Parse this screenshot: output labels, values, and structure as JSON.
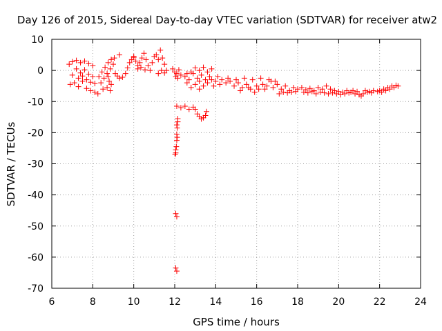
{
  "chart_data": {
    "type": "scatter",
    "title": "Day 126 of 2015, Sidereal Day-to-day VTEC variation (SDTVAR) for receiver atw2",
    "xlabel": "GPS time / hours",
    "ylabel": "SDTVAR / TECUs",
    "xlim": [
      6,
      24
    ],
    "ylim": [
      -70,
      10
    ],
    "xticks": [
      "6",
      "8",
      "10",
      "12",
      "14",
      "16",
      "18",
      "20",
      "22",
      "24"
    ],
    "yticks": [
      "10",
      "0",
      "-10",
      "-20",
      "-30",
      "-40",
      "-50",
      "-60",
      "-70"
    ],
    "grid": true,
    "marker": "plus",
    "color": "#ff0000",
    "series": [
      {
        "name": "SDTVAR",
        "points": [
          [
            6.85,
            2.0
          ],
          [
            7.0,
            2.8
          ],
          [
            7.2,
            3.2
          ],
          [
            7.4,
            2.5
          ],
          [
            7.6,
            3.0
          ],
          [
            7.8,
            2.2
          ],
          [
            8.0,
            1.5
          ],
          [
            7.0,
            -1.5
          ],
          [
            7.2,
            0.5
          ],
          [
            7.4,
            -0.8
          ],
          [
            7.6,
            0.2
          ],
          [
            7.8,
            -1.2
          ],
          [
            8.0,
            -2.0
          ],
          [
            6.9,
            -4.5
          ],
          [
            7.1,
            -4.0
          ],
          [
            7.3,
            -5.2
          ],
          [
            7.5,
            -3.5
          ],
          [
            7.7,
            -5.8
          ],
          [
            7.9,
            -6.5
          ],
          [
            8.1,
            -7.0
          ],
          [
            8.25,
            -7.5
          ],
          [
            7.3,
            -2.5
          ],
          [
            7.5,
            -1.8
          ],
          [
            7.7,
            -3.0
          ],
          [
            7.9,
            -3.8
          ],
          [
            8.1,
            -4.2
          ],
          [
            8.3,
            -2.0
          ],
          [
            8.45,
            -0.5
          ],
          [
            8.6,
            1.0
          ],
          [
            8.75,
            2.5
          ],
          [
            8.9,
            3.5
          ],
          [
            9.05,
            4.0
          ],
          [
            8.4,
            -4.0
          ],
          [
            8.55,
            -2.5
          ],
          [
            8.7,
            -1.0
          ],
          [
            8.85,
            0.5
          ],
          [
            9.0,
            2.0
          ],
          [
            8.7,
            -5.5
          ],
          [
            8.85,
            -6.5
          ],
          [
            8.9,
            -4.5
          ],
          [
            8.75,
            -2.0
          ],
          [
            8.5,
            -6.0
          ],
          [
            8.8,
            -3.5
          ],
          [
            9.1,
            -1.0
          ],
          [
            9.2,
            -1.8
          ],
          [
            9.3,
            -2.5
          ],
          [
            9.45,
            -2.2
          ],
          [
            9.6,
            -1.0
          ],
          [
            9.7,
            0.8
          ],
          [
            9.8,
            2.5
          ],
          [
            9.9,
            3.5
          ],
          [
            10.0,
            4.2
          ],
          [
            10.1,
            3.0
          ],
          [
            10.2,
            1.5
          ],
          [
            10.3,
            2.5
          ],
          [
            10.4,
            4.0
          ],
          [
            10.5,
            5.5
          ],
          [
            10.6,
            3.5
          ],
          [
            10.7,
            1.5
          ],
          [
            10.8,
            0.0
          ],
          [
            10.9,
            2.5
          ],
          [
            11.0,
            4.5
          ],
          [
            11.1,
            5.0
          ],
          [
            11.2,
            3.5
          ],
          [
            11.3,
            6.5
          ],
          [
            11.4,
            4.0
          ],
          [
            11.5,
            2.0
          ],
          [
            11.6,
            0.0
          ],
          [
            9.3,
            5.0
          ],
          [
            10.0,
            4.5
          ],
          [
            10.2,
            0.5
          ],
          [
            10.35,
            1.0
          ],
          [
            10.55,
            0.2
          ],
          [
            11.2,
            -1.0
          ],
          [
            11.35,
            0.0
          ],
          [
            11.5,
            -0.8
          ],
          [
            11.9,
            0.5
          ],
          [
            12.0,
            -0.5
          ],
          [
            12.1,
            -1.0
          ],
          [
            12.2,
            0.2
          ],
          [
            12.05,
            -2.0
          ],
          [
            12.15,
            -2.5
          ],
          [
            12.3,
            -1.5
          ],
          [
            12.1,
            -11.5
          ],
          [
            12.3,
            -12.0
          ],
          [
            12.5,
            -11.5
          ],
          [
            12.7,
            -12.5
          ],
          [
            12.9,
            -11.8
          ],
          [
            13.0,
            -12.5
          ],
          [
            13.1,
            -14.0
          ],
          [
            13.2,
            -14.8
          ],
          [
            13.3,
            -15.6
          ],
          [
            13.4,
            -15.2
          ],
          [
            13.5,
            -14.5
          ],
          [
            13.55,
            -13.2
          ],
          [
            12.15,
            -15.5
          ],
          [
            12.15,
            -16.5
          ],
          [
            12.12,
            -18.5
          ],
          [
            12.1,
            -20.5
          ],
          [
            12.1,
            -22.5
          ],
          [
            12.08,
            -24.5
          ],
          [
            12.05,
            -25.5
          ],
          [
            12.05,
            -26.5
          ],
          [
            12.02,
            -27.0
          ],
          [
            12.1,
            -17.5
          ],
          [
            12.12,
            -21.5
          ],
          [
            12.05,
            -46.0
          ],
          [
            12.1,
            -47.0
          ],
          [
            12.05,
            -63.5
          ],
          [
            12.1,
            -64.5
          ],
          [
            12.5,
            -2.0
          ],
          [
            12.7,
            -3.0
          ],
          [
            12.9,
            -1.0
          ],
          [
            13.1,
            -2.5
          ],
          [
            13.3,
            -1.5
          ],
          [
            13.5,
            -3.0
          ],
          [
            13.7,
            -2.0
          ],
          [
            12.6,
            -4.0
          ],
          [
            12.8,
            -5.5
          ],
          [
            13.0,
            -4.5
          ],
          [
            13.2,
            -6.0
          ],
          [
            13.4,
            -5.0
          ],
          [
            13.6,
            -4.0
          ],
          [
            13.8,
            -3.0
          ],
          [
            12.8,
            -0.5
          ],
          [
            13.0,
            0.8
          ],
          [
            13.2,
            0.0
          ],
          [
            13.4,
            1.0
          ],
          [
            13.6,
            -0.5
          ],
          [
            13.8,
            0.5
          ],
          [
            12.6,
            -1.0
          ],
          [
            13.2,
            -3.5
          ],
          [
            13.9,
            -5.0
          ],
          [
            14.0,
            -3.5
          ],
          [
            14.1,
            -2.0
          ],
          [
            14.2,
            -4.5
          ],
          [
            14.3,
            -3.0
          ],
          [
            14.5,
            -4.0
          ],
          [
            14.7,
            -3.5
          ],
          [
            14.9,
            -5.0
          ],
          [
            15.1,
            -4.0
          ],
          [
            15.3,
            -5.5
          ],
          [
            15.5,
            -4.5
          ],
          [
            15.7,
            -6.0
          ],
          [
            15.9,
            -7.0
          ],
          [
            16.1,
            -6.0
          ],
          [
            16.3,
            -4.5
          ],
          [
            16.5,
            -5.0
          ],
          [
            16.7,
            -3.5
          ],
          [
            14.6,
            -2.5
          ],
          [
            15.0,
            -3.0
          ],
          [
            15.4,
            -2.5
          ],
          [
            15.8,
            -3.0
          ],
          [
            16.2,
            -2.5
          ],
          [
            16.6,
            -3.0
          ],
          [
            16.9,
            -3.5
          ],
          [
            15.2,
            -6.5
          ],
          [
            15.6,
            -5.5
          ],
          [
            16.0,
            -5.0
          ],
          [
            16.4,
            -6.0
          ],
          [
            16.8,
            -5.5
          ],
          [
            17.0,
            -4.5
          ],
          [
            17.2,
            -6.0
          ],
          [
            17.4,
            -5.0
          ],
          [
            17.6,
            -6.5
          ],
          [
            17.8,
            -5.5
          ],
          [
            18.0,
            -6.0
          ],
          [
            17.1,
            -7.5
          ],
          [
            17.3,
            -7.0
          ],
          [
            17.5,
            -7.2
          ],
          [
            17.7,
            -7.0
          ],
          [
            17.9,
            -6.8
          ],
          [
            18.2,
            -5.5
          ],
          [
            18.4,
            -6.2
          ],
          [
            18.6,
            -5.8
          ],
          [
            18.8,
            -6.5
          ],
          [
            19.0,
            -5.5
          ],
          [
            19.2,
            -6.0
          ],
          [
            18.3,
            -7.0
          ],
          [
            18.5,
            -7.2
          ],
          [
            18.7,
            -6.8
          ],
          [
            18.9,
            -7.5
          ],
          [
            19.1,
            -7.0
          ],
          [
            19.3,
            -7.2
          ],
          [
            19.4,
            -5.0
          ],
          [
            19.6,
            -6.0
          ],
          [
            19.8,
            -6.5
          ],
          [
            20.0,
            -6.8
          ],
          [
            20.2,
            -7.0
          ],
          [
            20.4,
            -6.5
          ],
          [
            19.5,
            -7.5
          ],
          [
            19.7,
            -7.2
          ],
          [
            19.9,
            -7.5
          ],
          [
            20.1,
            -7.8
          ],
          [
            20.3,
            -7.5
          ],
          [
            20.5,
            -7.2
          ],
          [
            20.6,
            -7.0
          ],
          [
            20.8,
            -7.5
          ],
          [
            21.0,
            -7.8
          ],
          [
            21.1,
            -8.2
          ],
          [
            21.2,
            -7.5
          ],
          [
            21.4,
            -7.0
          ],
          [
            21.6,
            -7.2
          ],
          [
            20.7,
            -6.5
          ],
          [
            20.9,
            -6.8
          ],
          [
            21.3,
            -6.5
          ],
          [
            21.5,
            -6.8
          ],
          [
            21.7,
            -6.5
          ],
          [
            21.9,
            -6.8
          ],
          [
            22.0,
            -6.5
          ],
          [
            22.2,
            -6.0
          ],
          [
            22.4,
            -5.5
          ],
          [
            22.6,
            -5.0
          ],
          [
            22.8,
            -4.8
          ],
          [
            22.9,
            -5.0
          ],
          [
            22.1,
            -7.0
          ],
          [
            22.3,
            -6.5
          ],
          [
            22.5,
            -6.0
          ],
          [
            22.7,
            -5.5
          ]
        ]
      }
    ]
  }
}
